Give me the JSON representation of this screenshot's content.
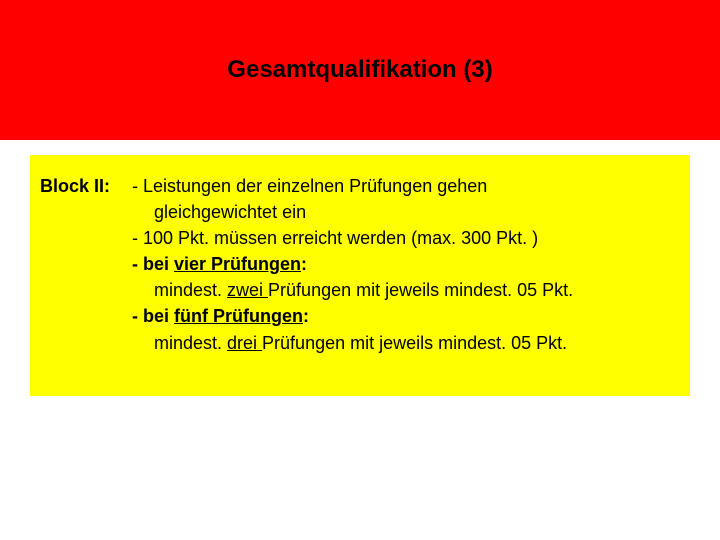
{
  "colors": {
    "header_bg": "#ff0000",
    "header_text": "#000000",
    "content_bg": "#ffff00",
    "content_text": "#000000",
    "page_bg": "#ffffff"
  },
  "typography": {
    "title_fontsize": 24,
    "body_fontsize": 18,
    "font_family": "Arial"
  },
  "header": {
    "title": "Gesamtqualifikation (3)"
  },
  "block": {
    "label": "Block II:",
    "lines": [
      {
        "text": "- Leistungen der einzelnen Prüfungen gehen",
        "indent": false
      },
      {
        "text": "gleichgewichtet ein",
        "indent": true
      },
      {
        "text": "- 100 Pkt. müssen erreicht werden (max. 300 Pkt. )",
        "indent": false
      },
      {
        "text": "- bei vier Prüfungen:",
        "indent": false,
        "bold": true,
        "underline_from": "vier Prüfungen"
      },
      {
        "text": "mindest. zwei Prüfungen mit jeweils mindest. 05 Pkt.",
        "indent": true,
        "underline_word": "zwei "
      },
      {
        "text": "- bei fünf Prüfungen:",
        "indent": false,
        "bold": true,
        "underline_from": "fünf Prüfungen"
      },
      {
        "text": "mindest. drei Prüfungen mit jeweils mindest. 05 Pkt.",
        "indent": true,
        "underline_word": "drei "
      }
    ]
  }
}
